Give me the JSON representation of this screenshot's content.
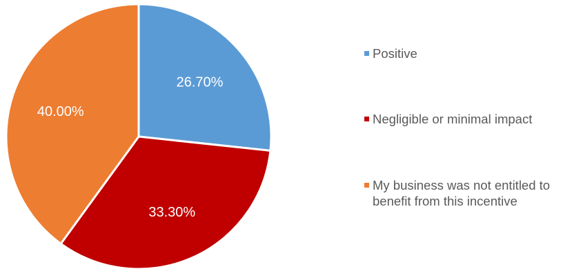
{
  "chart_data": {
    "type": "pie",
    "categories": [
      "Positive",
      "Negligible or minimal impact",
      "My business was not entitled to benefit from this incentive"
    ],
    "values": [
      26.7,
      33.3,
      40.0
    ],
    "data_labels": [
      "26.70%",
      "33.30%",
      "40.00%"
    ],
    "colors": [
      "#5B9BD5",
      "#C00000",
      "#ED7D31"
    ],
    "start_angle": "12 o'clock",
    "direction": "clockwise",
    "legend": "right"
  }
}
